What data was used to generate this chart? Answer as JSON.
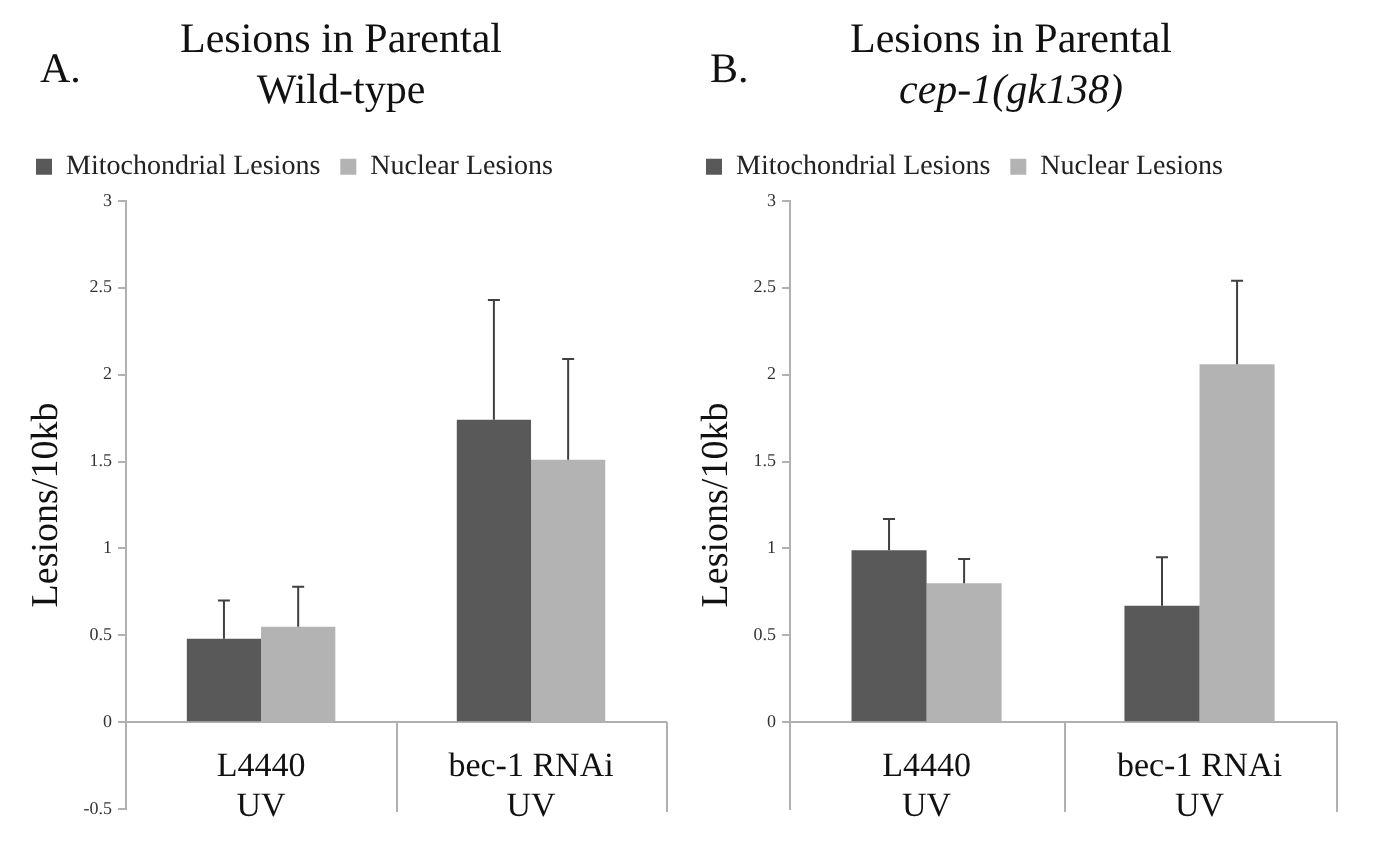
{
  "chart_data": [
    {
      "type": "bar",
      "title": "Lesions in Parental",
      "subtitle": "Wild-type",
      "annotations": [
        "A."
      ],
      "ylabel": "Lesions/10kb",
      "categories": [
        "L4440\nUV",
        "bec-1 RNAi\nUV"
      ],
      "series": [
        {
          "name": "Mitochondrial Lesions",
          "color": "#595959",
          "values": [
            0.48,
            1.74
          ],
          "errors": [
            [
              0.48,
              0.7
            ],
            [
              1.74,
              2.43
            ]
          ]
        },
        {
          "name": "Nuclear Lesions",
          "color": "#b3b3b3",
          "values": [
            0.55,
            1.51
          ],
          "errors": [
            [
              0.55,
              0.78
            ],
            [
              1.51,
              2.09
            ]
          ]
        }
      ],
      "ylim": [
        -0.5,
        3
      ],
      "yticks": [
        -0.5,
        0,
        0.5,
        1,
        1.5,
        2,
        2.5,
        3
      ],
      "grid": false,
      "legend": "top left"
    },
    {
      "type": "bar",
      "title": "Lesions in Parental",
      "subtitle": "cep-1(gk138)",
      "annotations": [
        "B."
      ],
      "ylabel": "Lesions/10kb",
      "categories": [
        "L4440\nUV",
        "bec-1 RNAi\nUV"
      ],
      "series": [
        {
          "name": "Mitochondrial Lesions",
          "color": "#595959",
          "values": [
            0.99,
            0.67
          ],
          "errors": [
            [
              0.99,
              1.17
            ],
            [
              0.67,
              0.95
            ]
          ]
        },
        {
          "name": "Nuclear Lesions",
          "color": "#b3b3b3",
          "values": [
            0.8,
            2.06
          ],
          "errors": [
            [
              0.8,
              0.94
            ],
            [
              2.06,
              2.54
            ]
          ]
        }
      ],
      "ylim": [
        -0.5,
        3
      ],
      "yticks": [
        0,
        0.5,
        1,
        1.5,
        2,
        2.5,
        3
      ],
      "grid": false,
      "legend": "top left"
    }
  ]
}
